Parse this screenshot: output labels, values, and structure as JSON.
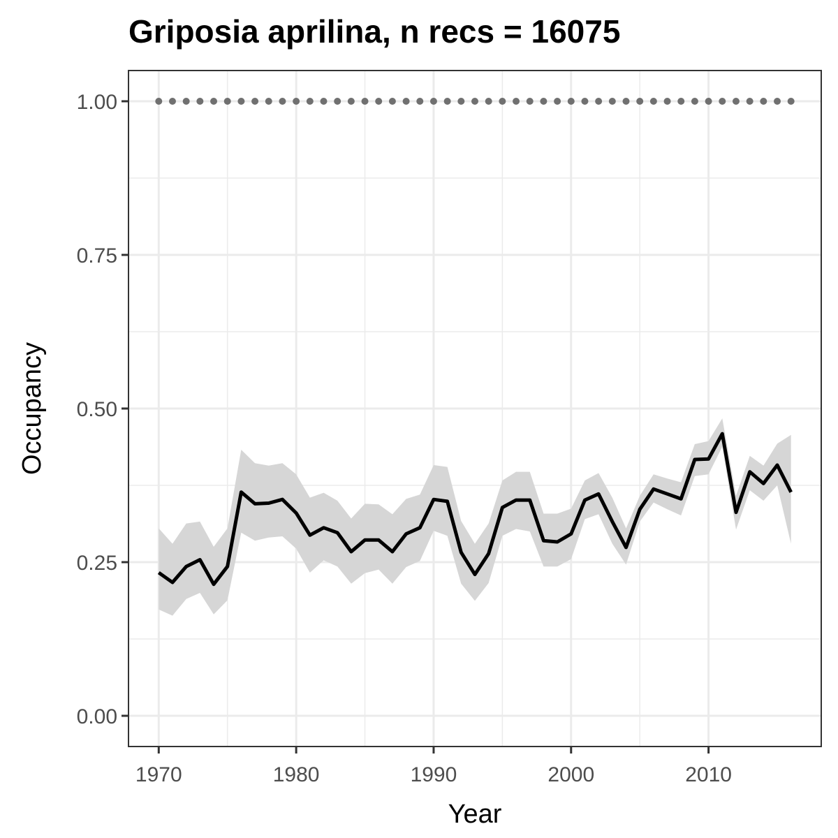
{
  "chart_data": {
    "type": "line",
    "title": "Griposia aprilina, n recs = 16075",
    "xlabel": "Year",
    "ylabel": "Occupancy",
    "xlim": [
      1967.8,
      2018.2
    ],
    "ylim": [
      -0.05,
      1.05
    ],
    "x_ticks": [
      1970,
      1980,
      1990,
      2000,
      2010
    ],
    "x_tick_labels": [
      "1970",
      "1980",
      "1990",
      "2000",
      "2010"
    ],
    "y_ticks": [
      0,
      0.25,
      0.5,
      0.75,
      1.0
    ],
    "y_tick_labels": [
      "0.00",
      "0.25",
      "0.50",
      "0.75",
      "1.00"
    ],
    "grid": true,
    "colors": {
      "line": "#000000",
      "ribbon": "#d6d6d6",
      "dots": "#707070",
      "grid": "#ebebeb",
      "panel_border": "#333333"
    },
    "series": [
      {
        "x": [
          1970,
          1971,
          1972,
          1973,
          1974,
          1975,
          1976,
          1977,
          1978,
          1979,
          1980,
          1981,
          1982,
          1983,
          1984,
          1985,
          1986,
          1987,
          1988,
          1989,
          1990,
          1991,
          1992,
          1993,
          1994,
          1995,
          1996,
          1997,
          1998,
          1999,
          2000,
          2001,
          2002,
          2003,
          2004,
          2005,
          2006,
          2007,
          2008,
          2009,
          2010,
          2011,
          2012,
          2013,
          2014,
          2015,
          2016
        ],
        "values": [
          0.233,
          0.217,
          0.243,
          0.254,
          0.214,
          0.243,
          0.364,
          0.345,
          0.346,
          0.352,
          0.33,
          0.294,
          0.306,
          0.298,
          0.267,
          0.286,
          0.286,
          0.267,
          0.296,
          0.306,
          0.352,
          0.349,
          0.266,
          0.23,
          0.264,
          0.339,
          0.351,
          0.351,
          0.285,
          0.283,
          0.296,
          0.351,
          0.361,
          0.316,
          0.274,
          0.336,
          0.369,
          0.361,
          0.353,
          0.417,
          0.418,
          0.459,
          0.331,
          0.397,
          0.378,
          0.408,
          0.364
        ],
        "lower": [
          0.173,
          0.163,
          0.19,
          0.2,
          0.165,
          0.188,
          0.298,
          0.285,
          0.29,
          0.292,
          0.272,
          0.233,
          0.253,
          0.243,
          0.215,
          0.232,
          0.238,
          0.215,
          0.242,
          0.252,
          0.301,
          0.293,
          0.215,
          0.187,
          0.216,
          0.293,
          0.304,
          0.3,
          0.243,
          0.243,
          0.255,
          0.32,
          0.328,
          0.28,
          0.246,
          0.316,
          0.347,
          0.336,
          0.326,
          0.39,
          0.393,
          0.438,
          0.303,
          0.367,
          0.35,
          0.375,
          0.28
        ]
      },
      {
        "x": [
          1970,
          1971,
          1972,
          1973,
          1974,
          1975,
          1976,
          1977,
          1978,
          1979,
          1980,
          1981,
          1982,
          1983,
          1984,
          1985,
          1986,
          1987,
          1988,
          1989,
          1990,
          1991,
          1992,
          1993,
          1994,
          1995,
          1996,
          1997,
          1998,
          1999,
          2000,
          2001,
          2002,
          2003,
          2004,
          2005,
          2006,
          2007,
          2008,
          2009,
          2010,
          2011,
          2012,
          2013,
          2014,
          2015,
          2016
        ],
        "values": [
          0.305,
          0.28,
          0.313,
          0.316,
          0.275,
          0.305,
          0.433,
          0.411,
          0.407,
          0.411,
          0.393,
          0.355,
          0.363,
          0.35,
          0.321,
          0.345,
          0.344,
          0.328,
          0.353,
          0.36,
          0.408,
          0.405,
          0.317,
          0.28,
          0.313,
          0.383,
          0.397,
          0.397,
          0.329,
          0.329,
          0.337,
          0.383,
          0.395,
          0.355,
          0.305,
          0.358,
          0.393,
          0.386,
          0.38,
          0.442,
          0.447,
          0.484,
          0.358,
          0.423,
          0.407,
          0.443,
          0.457
        ]
      },
      {
        "x": [
          1970,
          1971,
          1972,
          1973,
          1974,
          1975,
          1976,
          1977,
          1978,
          1979,
          1980,
          1981,
          1982,
          1983,
          1984,
          1985,
          1986,
          1987,
          1988,
          1989,
          1990,
          1991,
          1992,
          1993,
          1994,
          1995,
          1996,
          1997,
          1998,
          1999,
          2000,
          2001,
          2002,
          2003,
          2004,
          2005,
          2006,
          2007,
          2008,
          2009,
          2010,
          2011,
          2012,
          2013,
          2014,
          2015,
          2016
        ],
        "values": [
          1,
          1,
          1,
          1,
          1,
          1,
          1,
          1,
          1,
          1,
          1,
          1,
          1,
          1,
          1,
          1,
          1,
          1,
          1,
          1,
          1,
          1,
          1,
          1,
          1,
          1,
          1,
          1,
          1,
          1,
          1,
          1,
          1,
          1,
          1,
          1,
          1,
          1,
          1,
          1,
          1,
          1,
          1,
          1,
          1,
          1,
          1
        ]
      }
    ]
  }
}
